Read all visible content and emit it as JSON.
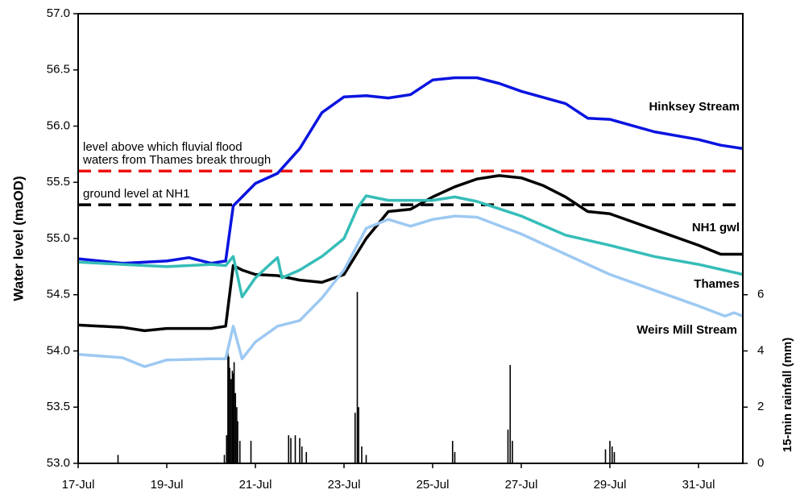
{
  "chart_data": {
    "type": "line",
    "ylabel": "Water level (maOD)",
    "y2label": "15-min rainfall (mm)",
    "xlim": [
      17,
      32
    ],
    "xticks": [
      {
        "value": 17,
        "label": "17-Jul"
      },
      {
        "value": 19,
        "label": "19-Jul"
      },
      {
        "value": 21,
        "label": "21-Jul"
      },
      {
        "value": 23,
        "label": "23-Jul"
      },
      {
        "value": 25,
        "label": "25-Jul"
      },
      {
        "value": 27,
        "label": "27-Jul"
      },
      {
        "value": 29,
        "label": "29-Jul"
      },
      {
        "value": 31,
        "label": "31-Jul"
      }
    ],
    "ylim": [
      53,
      57
    ],
    "yticks": [
      {
        "value": 53,
        "label": "53.0"
      },
      53.5,
      {
        "value": 54,
        "label": "54.0"
      },
      54.5,
      {
        "value": 55,
        "label": "55.0"
      },
      55.5,
      {
        "value": 56,
        "label": "56.0"
      },
      56.5,
      {
        "value": 57,
        "label": "57.0"
      }
    ],
    "y2lim": [
      0,
      16
    ],
    "y2ticks": [
      0,
      2,
      4,
      6
    ],
    "series": [
      {
        "name": "Hinksey Stream",
        "color": "#0a14e0",
        "x": [
          17,
          18,
          19,
          19.5,
          20,
          20.33,
          20.5,
          21,
          21.5,
          22,
          22.5,
          23,
          23.5,
          24,
          24.5,
          25,
          25.5,
          26,
          26.5,
          27,
          28,
          28.5,
          29,
          30,
          31,
          31.5,
          32
        ],
        "values": [
          54.82,
          54.78,
          54.8,
          54.83,
          54.78,
          54.8,
          55.29,
          55.49,
          55.58,
          55.8,
          56.12,
          56.26,
          56.27,
          56.25,
          56.28,
          56.41,
          56.43,
          56.43,
          56.38,
          56.31,
          56.2,
          56.07,
          56.06,
          55.95,
          55.88,
          55.83,
          55.8
        ]
      },
      {
        "name": "NH1 gwl",
        "color": "#000000",
        "x": [
          17,
          18,
          18.5,
          19,
          20,
          20.33,
          20.5,
          20.7,
          21,
          21.5,
          22,
          22.5,
          23,
          23.5,
          24,
          24.5,
          25,
          25.5,
          26,
          26.5,
          27,
          27.5,
          28,
          28.5,
          29,
          30,
          31,
          31.5,
          32
        ],
        "values": [
          54.23,
          54.21,
          54.18,
          54.2,
          54.2,
          54.22,
          54.76,
          54.72,
          54.68,
          54.67,
          54.63,
          54.61,
          54.68,
          55.0,
          55.24,
          55.26,
          55.37,
          55.46,
          55.53,
          55.56,
          55.54,
          55.47,
          55.37,
          55.24,
          55.22,
          55.08,
          54.94,
          54.86,
          54.86
        ]
      },
      {
        "name": "Thames",
        "color": "#36bdb8",
        "x": [
          17,
          18,
          19,
          20,
          20.33,
          20.5,
          20.7,
          21,
          21.3,
          21.5,
          21.6,
          22,
          22.5,
          23,
          23.3,
          23.5,
          24,
          25,
          25.5,
          26,
          27,
          28,
          29,
          30,
          31,
          32
        ],
        "values": [
          54.79,
          54.77,
          54.75,
          54.77,
          54.76,
          54.84,
          54.48,
          54.65,
          54.76,
          54.83,
          54.65,
          54.72,
          54.84,
          55.0,
          55.27,
          55.38,
          55.34,
          55.34,
          55.37,
          55.33,
          55.2,
          55.03,
          54.94,
          54.84,
          54.77,
          54.68
        ]
      },
      {
        "name": "Weirs Mill Stream",
        "color": "#9dc9f2",
        "x": [
          17,
          18,
          18.5,
          19,
          20,
          20.33,
          20.5,
          20.7,
          21,
          21.5,
          22,
          22.5,
          23,
          23.5,
          24,
          24.5,
          25,
          25.5,
          26,
          27,
          28,
          29,
          30,
          31,
          31.6,
          31.8,
          32
        ],
        "values": [
          53.97,
          53.94,
          53.86,
          53.92,
          53.93,
          53.93,
          54.22,
          53.93,
          54.08,
          54.22,
          54.27,
          54.47,
          54.72,
          55.09,
          55.17,
          55.11,
          55.17,
          55.2,
          55.19,
          55.04,
          54.86,
          54.68,
          54.54,
          54.4,
          54.31,
          54.34,
          54.31
        ]
      }
    ],
    "rainfall": {
      "axis": "y2",
      "color": "#000000",
      "x": [
        17.9,
        20.3,
        20.35,
        20.38,
        20.4,
        20.42,
        20.45,
        20.48,
        20.5,
        20.52,
        20.55,
        20.58,
        20.6,
        20.65,
        20.9,
        21.75,
        21.8,
        21.9,
        22.0,
        22.05,
        22.15,
        23.25,
        23.3,
        23.33,
        23.4,
        23.5,
        25.45,
        25.5,
        26.7,
        26.75,
        26.8,
        28.9,
        29.0,
        29.05,
        29.1
      ],
      "values": [
        0.3,
        0.3,
        1,
        4,
        3.8,
        3.4,
        3.0,
        3.3,
        3.2,
        3.6,
        2.5,
        2,
        1.5,
        0.8,
        0.8,
        1,
        0.9,
        1,
        0.9,
        0.6,
        0.4,
        1.8,
        6.1,
        2,
        0.6,
        0.3,
        0.8,
        0.4,
        1.2,
        3.5,
        0.8,
        0.5,
        0.8,
        0.6,
        0.4
      ]
    },
    "hlines": [
      {
        "value": 55.6,
        "color": "#ee1111",
        "label": [
          "level above which fluvial flood",
          "waters from Thames break through"
        ]
      },
      {
        "value": 55.3,
        "color": "#000000",
        "label": [
          "ground level at NH1"
        ]
      }
    ]
  }
}
